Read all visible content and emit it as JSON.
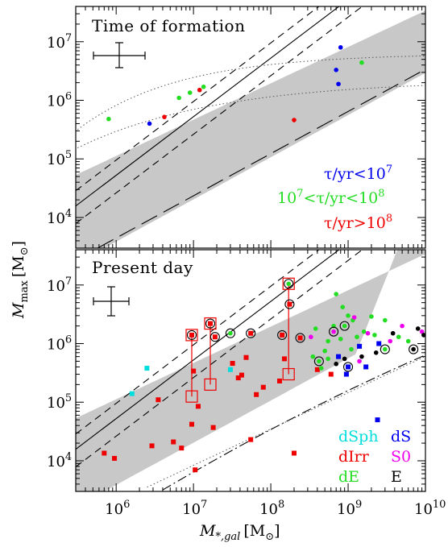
{
  "chart_data": [
    {
      "type": "scatter",
      "panel_label": "Time of formation",
      "xlog": true,
      "ylog": true,
      "xlim": [
        300000,
        10000000000
      ],
      "ylim": [
        3000,
        40000000
      ],
      "y_ticks": [
        {
          "v": 10000,
          "base": "10",
          "exp": "4"
        },
        {
          "v": 100000,
          "base": "10",
          "exp": "5"
        },
        {
          "v": 1000000,
          "base": "10",
          "exp": "6"
        },
        {
          "v": 10000000,
          "base": "10",
          "exp": "7"
        }
      ],
      "legend": [
        {
          "pre": "τ/yr<10",
          "sup": "7",
          "post": "",
          "color": "#0000ee"
        },
        {
          "pre": "10",
          "sup": "7",
          "post": "<τ/yr<10",
          "sup2": "8",
          "color": "#22dd22"
        },
        {
          "pre": "τ/yr>10",
          "sup": "8",
          "post": "",
          "color": "#ee0000"
        }
      ],
      "points": [
        {
          "x": 800000,
          "y": 480000,
          "group": "green"
        },
        {
          "x": 2700000,
          "y": 400000,
          "group": "blue"
        },
        {
          "x": 4200000,
          "y": 520000,
          "group": "red"
        },
        {
          "x": 6500000,
          "y": 1100000,
          "group": "green"
        },
        {
          "x": 12000000,
          "y": 1500000,
          "group": "red"
        },
        {
          "x": 13500000,
          "y": 1700000,
          "group": "green"
        },
        {
          "x": 9000000,
          "y": 1350000,
          "group": "green"
        },
        {
          "x": 200000000,
          "y": 460000,
          "group": "red"
        },
        {
          "x": 700000000,
          "y": 3300000,
          "group": "blue"
        },
        {
          "x": 750000000,
          "y": 1900000,
          "group": "blue"
        },
        {
          "x": 800000000,
          "y": 8000000,
          "group": "blue"
        },
        {
          "x": 1500000000,
          "y": 4400000,
          "group": "green"
        }
      ]
    },
    {
      "type": "scatter",
      "panel_label": "Present day",
      "xlog": true,
      "ylog": true,
      "xlim": [
        300000,
        10000000000
      ],
      "ylim": [
        3000,
        40000000
      ],
      "xlabel": "M",
      "xlabel_sub": "*,gal",
      "xlabel_unit": "[M",
      "ylabel": "M",
      "ylabel_sub": "max",
      "ylabel_unit": "[M",
      "x_ticks": [
        {
          "v": 1000000,
          "base": "10",
          "exp": "6"
        },
        {
          "v": 10000000,
          "base": "10",
          "exp": "7"
        },
        {
          "v": 100000000,
          "base": "10",
          "exp": "8"
        },
        {
          "v": 1000000000,
          "base": "10",
          "exp": "9"
        },
        {
          "v": 10000000000,
          "base": "10",
          "exp": "10"
        }
      ],
      "y_ticks": [
        {
          "v": 10000,
          "base": "10",
          "exp": "4"
        },
        {
          "v": 100000,
          "base": "10",
          "exp": "5"
        },
        {
          "v": 1000000,
          "base": "10",
          "exp": "6"
        },
        {
          "v": 10000000,
          "base": "10",
          "exp": "7"
        }
      ],
      "legend": [
        {
          "label": "dSph",
          "color": "#00dddd"
        },
        {
          "label": "dS",
          "color": "#0000ee"
        },
        {
          "label": "dIrr",
          "color": "#ee0000"
        },
        {
          "label": "S0",
          "color": "#ee00ee"
        },
        {
          "label": "dE",
          "color": "#22dd22"
        },
        {
          "label": "E",
          "color": "#000000"
        }
      ],
      "highlight_groups": [
        {
          "x": 9500000,
          "y_top": 1400000,
          "y_bottom": 125000
        },
        {
          "x": 16500000,
          "y_top": 2200000,
          "y_bottom": 200000
        },
        {
          "x": 170000000,
          "y_top": 10500000,
          "y_bottom": 300000
        }
      ],
      "circled_points": [
        {
          "x": 9500000,
          "y": 1400000,
          "group": "dIrr"
        },
        {
          "x": 16500000,
          "y": 2200000,
          "group": "dIrr"
        },
        {
          "x": 19000000,
          "y": 1300000,
          "group": "dIrr"
        },
        {
          "x": 30000000,
          "y": 1500000,
          "group": "dE"
        },
        {
          "x": 55000000,
          "y": 1500000,
          "group": "dIrr"
        },
        {
          "x": 140000000,
          "y": 1400000,
          "group": "dIrr"
        },
        {
          "x": 170000000,
          "y": 10500000,
          "group": "dE"
        },
        {
          "x": 175000000,
          "y": 4700000,
          "group": "dIrr"
        },
        {
          "x": 240000000,
          "y": 1250000,
          "group": "dIrr"
        },
        {
          "x": 420000000,
          "y": 500000,
          "group": "dE"
        },
        {
          "x": 650000000,
          "y": 1600000,
          "group": "S0"
        },
        {
          "x": 900000000,
          "y": 2000000,
          "group": "dE"
        },
        {
          "x": 1000000000,
          "y": 400000,
          "group": "dS"
        },
        {
          "x": 3000000000,
          "y": 800000,
          "group": "dE"
        },
        {
          "x": 7000000000,
          "y": 800000,
          "group": "E"
        }
      ],
      "points": [
        {
          "x": 700000,
          "y": 13500,
          "group": "dIrr"
        },
        {
          "x": 950000,
          "y": 11000,
          "group": "dIrr"
        },
        {
          "x": 1600000,
          "y": 140000,
          "group": "dSph"
        },
        {
          "x": 2500000,
          "y": 380000,
          "group": "dSph"
        },
        {
          "x": 2900000,
          "y": 18000,
          "group": "dIrr"
        },
        {
          "x": 3500000,
          "y": 110000,
          "group": "dIrr"
        },
        {
          "x": 5500000,
          "y": 21000,
          "group": "dIrr"
        },
        {
          "x": 7000000,
          "y": 16500,
          "group": "dIrr"
        },
        {
          "x": 9500000,
          "y": 42000,
          "group": "dIrr"
        },
        {
          "x": 10000000,
          "y": 340000,
          "group": "dIrr"
        },
        {
          "x": 10500000,
          "y": 7000,
          "group": "dIrr"
        },
        {
          "x": 11500000,
          "y": 85000,
          "group": "dIrr"
        },
        {
          "x": 18000000,
          "y": 37000,
          "group": "dIrr"
        },
        {
          "x": 30000000,
          "y": 360000,
          "group": "dSph"
        },
        {
          "x": 32000000,
          "y": 460000,
          "group": "dIrr"
        },
        {
          "x": 38000000,
          "y": 260000,
          "group": "dIrr"
        },
        {
          "x": 42000000,
          "y": 290000,
          "group": "dIrr"
        },
        {
          "x": 48000000,
          "y": 580000,
          "group": "dIrr"
        },
        {
          "x": 55000000,
          "y": 23000,
          "group": "dIrr"
        },
        {
          "x": 65000000,
          "y": 135000,
          "group": "dIrr"
        },
        {
          "x": 80000000,
          "y": 180000,
          "group": "dIrr"
        },
        {
          "x": 130000000,
          "y": 230000,
          "group": "dIrr"
        },
        {
          "x": 150000000,
          "y": 550000,
          "group": "dIrr"
        },
        {
          "x": 200000000,
          "y": 13500,
          "group": "dIrr"
        },
        {
          "x": 330000000,
          "y": 1300000,
          "group": "S0"
        },
        {
          "x": 350000000,
          "y": 600000,
          "group": "dE"
        },
        {
          "x": 380000000,
          "y": 1800000,
          "group": "dE"
        },
        {
          "x": 400000000,
          "y": 360000,
          "group": "dIrr"
        },
        {
          "x": 450000000,
          "y": 380000,
          "group": "dE"
        },
        {
          "x": 500000000,
          "y": 750000,
          "group": "dE"
        },
        {
          "x": 550000000,
          "y": 550000,
          "group": "dE"
        },
        {
          "x": 550000000,
          "y": 1100000,
          "group": "dE"
        },
        {
          "x": 600000000,
          "y": 300000,
          "group": "dIrr"
        },
        {
          "x": 650000000,
          "y": 2000000,
          "group": "dE"
        },
        {
          "x": 700000000,
          "y": 450000,
          "group": "E"
        },
        {
          "x": 700000000,
          "y": 7000000,
          "group": "dE"
        },
        {
          "x": 750000000,
          "y": 600000,
          "group": "dS"
        },
        {
          "x": 800000000,
          "y": 1200000,
          "group": "dE"
        },
        {
          "x": 850000000,
          "y": 4200000,
          "group": "dE"
        },
        {
          "x": 900000000,
          "y": 550000,
          "group": "E"
        },
        {
          "x": 950000000,
          "y": 300000,
          "group": "dS"
        },
        {
          "x": 1000000000,
          "y": 3000000,
          "group": "dE"
        },
        {
          "x": 1100000000,
          "y": 800000,
          "group": "dE"
        },
        {
          "x": 1150000000,
          "y": 2500000,
          "group": "dE"
        },
        {
          "x": 1200000000,
          "y": 2800000,
          "group": "S0"
        },
        {
          "x": 1300000000,
          "y": 1300000,
          "group": "dE"
        },
        {
          "x": 1400000000,
          "y": 500000,
          "group": "S0"
        },
        {
          "x": 1400000000,
          "y": 900000,
          "group": "dS"
        },
        {
          "x": 1500000000,
          "y": 600000,
          "group": "E"
        },
        {
          "x": 1600000000,
          "y": 1600000,
          "group": "dE"
        },
        {
          "x": 1700000000,
          "y": 400000,
          "group": "dS"
        },
        {
          "x": 1800000000,
          "y": 1500000,
          "group": "S0"
        },
        {
          "x": 2000000000,
          "y": 2900000,
          "group": "dE"
        },
        {
          "x": 2200000000,
          "y": 1400000,
          "group": "dE"
        },
        {
          "x": 2300000000,
          "y": 700000,
          "group": "E"
        },
        {
          "x": 2400000000,
          "y": 50000,
          "group": "dS"
        },
        {
          "x": 2500000000,
          "y": 1000000,
          "group": "dS"
        },
        {
          "x": 3000000000,
          "y": 2500000,
          "group": "dE"
        },
        {
          "x": 3500000000,
          "y": 1100000,
          "group": "S0"
        },
        {
          "x": 3800000000,
          "y": 1500000,
          "group": "E"
        },
        {
          "x": 4500000000,
          "y": 1300000,
          "group": "dE"
        },
        {
          "x": 5000000000,
          "y": 2000000,
          "group": "S0"
        },
        {
          "x": 6000000000,
          "y": 1100000,
          "group": "dE"
        },
        {
          "x": 8000000000,
          "y": 1800000,
          "group": "E"
        },
        {
          "x": 9000000000,
          "y": 1600000,
          "group": "S0"
        },
        {
          "x": 9500000000,
          "y": 1400000,
          "group": "E"
        }
      ]
    }
  ],
  "colors": {
    "band": "#c8c8c8",
    "blue": "#0000ee",
    "green": "#22dd22",
    "red": "#ee0000",
    "dSph": "#00dddd",
    "dS": "#0000ee",
    "dIrr": "#ee0000",
    "S0": "#ee00ee",
    "dE": "#22dd22",
    "E": "#000000"
  },
  "sun_symbol": "⊙"
}
